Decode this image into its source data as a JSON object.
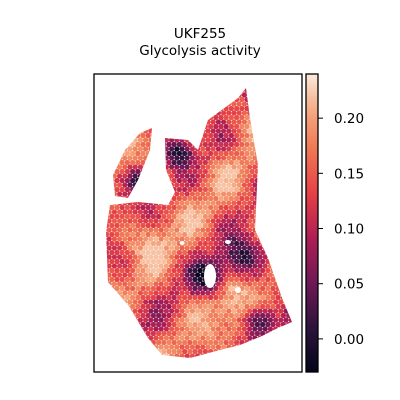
{
  "chart_data": {
    "type": "heatmap",
    "title_lines": [
      "UKF255",
      "Glycolysis activity"
    ],
    "xlabel": "",
    "ylabel": "",
    "grid": false,
    "colormap": "rocket",
    "colorbar": {
      "range": [
        -0.03,
        0.24
      ],
      "ticks": [
        0.0,
        0.05,
        0.1,
        0.15,
        0.2
      ],
      "tick_labels": [
        "0.00",
        "0.05",
        "0.10",
        "0.15",
        "0.20"
      ]
    },
    "value_summary": {
      "typical_min": -0.03,
      "typical_max": 0.22,
      "dominant_level": 0.15
    }
  }
}
